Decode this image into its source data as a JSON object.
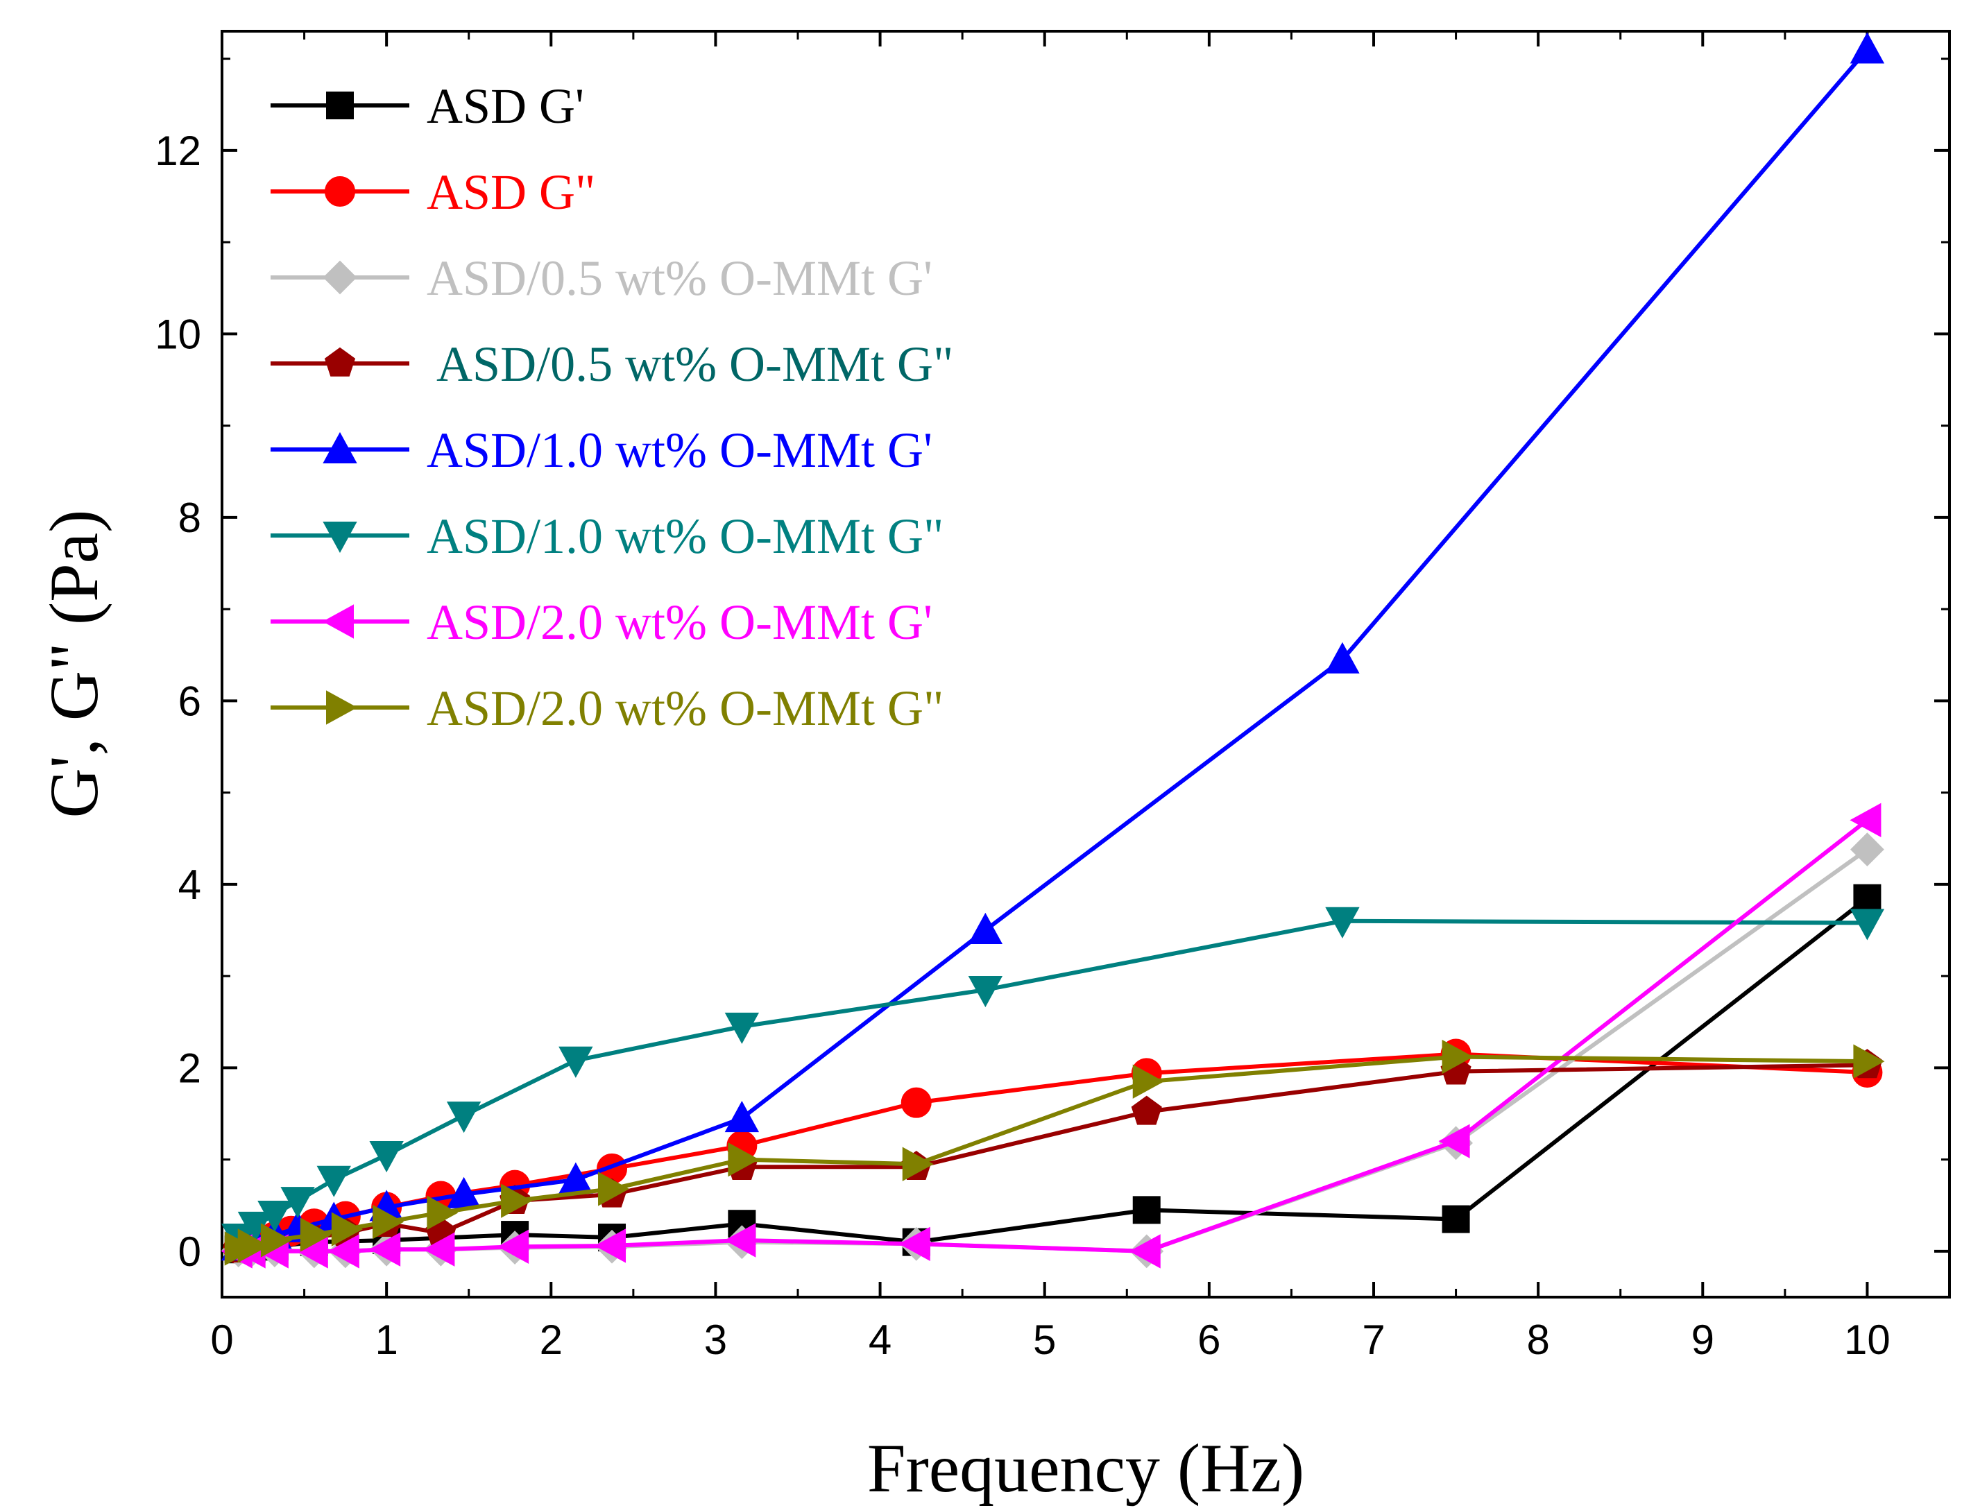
{
  "chart_data": {
    "type": "line",
    "xlabel": "Frequency (Hz)",
    "ylabel": "G', G\" (Pa)",
    "xlim": [
      0,
      10.5
    ],
    "ylim": [
      -0.5,
      13.3
    ],
    "xticks": [
      0,
      1,
      2,
      3,
      4,
      5,
      6,
      7,
      8,
      9,
      10
    ],
    "xtick_labels": [
      "0",
      "1",
      "2",
      "3",
      "4",
      "5",
      "6",
      "7",
      "8",
      "9",
      "10"
    ],
    "yticks": [
      0,
      2,
      4,
      6,
      8,
      10,
      12
    ],
    "ytick_labels": [
      "0",
      "2",
      "4",
      "6",
      "8",
      "10",
      "12"
    ],
    "grid": false,
    "legend_position": "top-left",
    "series": [
      {
        "name": "ASD G'",
        "color": "#000000",
        "marker": "square",
        "x": [
          0.1,
          0.18,
          0.32,
          0.56,
          1.0,
          1.78,
          2.37,
          3.16,
          4.22,
          5.62,
          7.5,
          10.0
        ],
        "y": [
          0.02,
          0.03,
          0.05,
          0.1,
          0.12,
          0.18,
          0.15,
          0.3,
          0.1,
          0.45,
          0.35,
          3.85
        ]
      },
      {
        "name": "ASD G\"",
        "color": "#ff0000",
        "marker": "circle",
        "x": [
          0.1,
          0.13,
          0.18,
          0.24,
          0.32,
          0.42,
          0.56,
          0.75,
          1.0,
          1.33,
          1.78,
          2.37,
          3.16,
          4.22,
          5.62,
          7.5,
          10.0
        ],
        "y": [
          0.03,
          0.05,
          0.08,
          0.12,
          0.16,
          0.22,
          0.3,
          0.38,
          0.48,
          0.6,
          0.72,
          0.9,
          1.15,
          1.62,
          1.94,
          2.15,
          1.95
        ]
      },
      {
        "name": "ASD/0.5 wt% O-MMt G'",
        "color": "#c0c0c0",
        "marker": "diamond",
        "x": [
          0.1,
          0.18,
          0.32,
          0.56,
          0.75,
          1.0,
          1.33,
          1.78,
          2.37,
          3.16,
          4.22,
          5.62,
          7.5,
          10.0
        ],
        "y": [
          0.01,
          0.01,
          0.01,
          0.0,
          0.0,
          0.02,
          0.02,
          0.04,
          0.05,
          0.1,
          0.08,
          0.0,
          1.18,
          4.38
        ]
      },
      {
        "name": " ASD/0.5 wt% O-MMt G\"",
        "color": "#990000",
        "text_color": "#006666",
        "marker": "pentagon",
        "x": [
          0.1,
          0.18,
          0.32,
          0.56,
          0.75,
          1.0,
          1.33,
          1.78,
          2.37,
          3.16,
          4.22,
          5.62,
          7.5,
          10.0
        ],
        "y": [
          0.02,
          0.05,
          0.1,
          0.15,
          0.2,
          0.3,
          0.2,
          0.55,
          0.62,
          0.92,
          0.92,
          1.52,
          1.96,
          2.03
        ]
      },
      {
        "name": "ASD/1.0 wt% O-MMt G'",
        "color": "#0000ff",
        "marker": "triangle-up",
        "x": [
          0.1,
          0.2,
          0.32,
          0.46,
          0.68,
          1.0,
          1.47,
          2.15,
          3.16,
          4.64,
          6.81,
          10.0
        ],
        "y": [
          0.05,
          0.1,
          0.18,
          0.25,
          0.35,
          0.48,
          0.62,
          0.78,
          1.45,
          3.5,
          6.45,
          13.1
        ]
      },
      {
        "name": "ASD/1.0 wt% O-MMt G\"",
        "color": "#008080",
        "marker": "triangle-down",
        "x": [
          0.1,
          0.2,
          0.32,
          0.46,
          0.68,
          1.0,
          1.47,
          2.15,
          3.16,
          4.64,
          6.81,
          10.0
        ],
        "y": [
          0.15,
          0.28,
          0.4,
          0.55,
          0.78,
          1.05,
          1.48,
          2.08,
          2.45,
          2.85,
          3.6,
          3.58
        ]
      },
      {
        "name": "ASD/2.0 wt% O-MMt G'",
        "color": "#ff00ff",
        "marker": "triangle-left",
        "x": [
          0.1,
          0.18,
          0.32,
          0.56,
          0.75,
          1.0,
          1.33,
          1.78,
          2.37,
          3.16,
          4.22,
          5.62,
          7.5,
          10.0
        ],
        "y": [
          0.0,
          0.0,
          0.0,
          0.0,
          0.0,
          0.02,
          0.02,
          0.05,
          0.06,
          0.12,
          0.08,
          0.0,
          1.2,
          4.7
        ]
      },
      {
        "name": "ASD/2.0 wt% O-MMt G\"",
        "color": "#808000",
        "marker": "triangle-right",
        "x": [
          0.1,
          0.18,
          0.32,
          0.56,
          0.75,
          1.0,
          1.33,
          1.78,
          2.37,
          3.16,
          4.22,
          5.62,
          7.5,
          10.0
        ],
        "y": [
          0.03,
          0.06,
          0.12,
          0.18,
          0.24,
          0.32,
          0.42,
          0.55,
          0.68,
          1.0,
          0.95,
          1.85,
          2.12,
          2.07
        ]
      }
    ]
  }
}
